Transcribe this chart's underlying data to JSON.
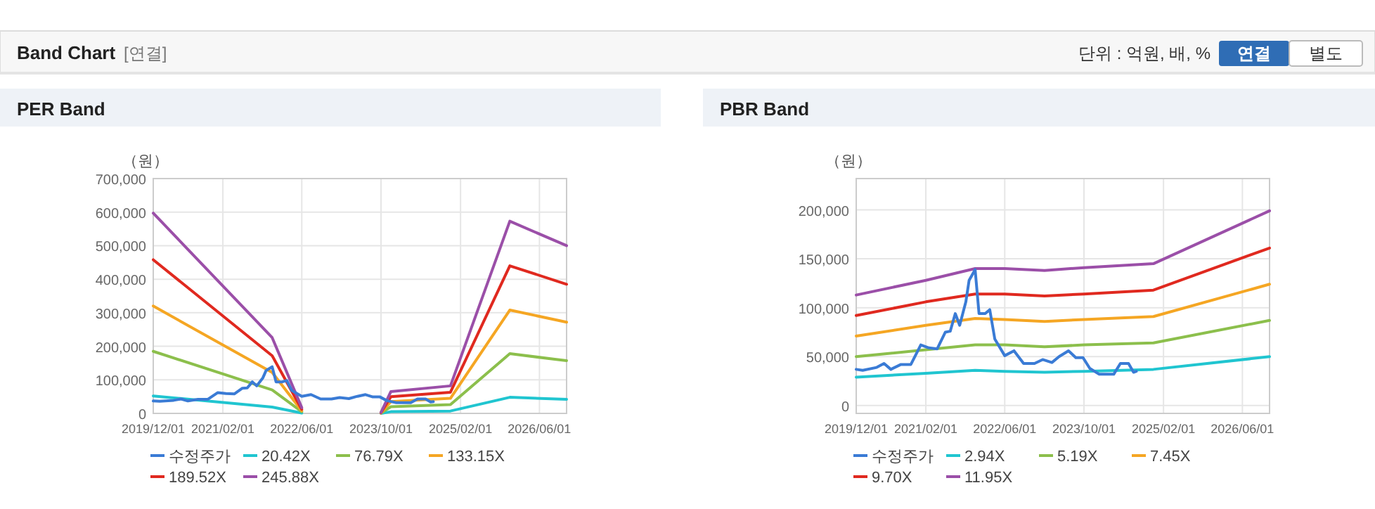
{
  "chart_data": [
    {
      "type": "line",
      "title": "PER Band",
      "ylabel": "（원）",
      "annotations": [
        "Band Chart",
        "[연결]",
        "단위 : 억원, 배, %",
        "연결",
        "별도"
      ],
      "grid": true,
      "legend": "bottom",
      "marker": "none",
      "line_style": "solid",
      "xlim": [
        "2019-12-01",
        "2026-11-15"
      ],
      "xticks": [
        {
          "value": "2019-12-01",
          "label": "2019/12/01"
        },
        {
          "value": "2021-02-01",
          "label": "2021/02/01"
        },
        {
          "value": "2022-06-01",
          "label": "2022/06/01"
        },
        {
          "value": "2023-10-01",
          "label": "2023/10/01"
        },
        {
          "value": "2025-02-01",
          "label": "2025/02/01"
        },
        {
          "value": "2026-06-01",
          "label": "2026/06/01"
        }
      ],
      "ylim": [
        0,
        700000
      ],
      "yticks": [
        {
          "value": 0,
          "label": "0"
        },
        {
          "value": 100000,
          "label": "100,000"
        },
        {
          "value": 200000,
          "label": "200,000"
        },
        {
          "value": 300000,
          "label": "300,000"
        },
        {
          "value": 400000,
          "label": "400,000"
        },
        {
          "value": 500000,
          "label": "500,000"
        },
        {
          "value": 600000,
          "label": "600,000"
        },
        {
          "value": 700000,
          "label": "700,000"
        }
      ],
      "series": [
        {
          "name": "수정주가",
          "color": "#3a7bd5",
          "x": [
            "2019-12-01",
            "2020-01-10",
            "2020-04-05",
            "2020-05-20",
            "2020-07-01",
            "2020-09-01",
            "2020-11-01",
            "2021-01-01",
            "2021-02-20",
            "2021-04-12",
            "2021-06-01",
            "2021-07-01",
            "2021-08-01",
            "2021-08-28",
            "2021-10-05",
            "2021-10-25",
            "2021-12-01",
            "2021-12-25",
            "2022-02-01",
            "2022-03-01",
            "2022-04-01",
            "2022-06-01",
            "2022-07-28",
            "2022-09-25",
            "2022-12-01",
            "2023-01-20",
            "2023-03-18",
            "2023-05-01",
            "2023-06-28",
            "2023-08-12",
            "2023-09-25",
            "2023-11-06",
            "2024-01-03",
            "2024-04-01",
            "2024-05-12",
            "2024-07-01",
            "2024-08-01",
            "2024-08-18"
          ],
          "values": [
            37000,
            36000,
            39000,
            43000,
            37000,
            42000,
            42000,
            62000,
            59000,
            58000,
            75000,
            76000,
            94000,
            82000,
            106000,
            128000,
            139000,
            94000,
            94000,
            98000,
            68000,
            51000,
            56000,
            43000,
            43000,
            47000,
            44000,
            50000,
            56000,
            49000,
            49000,
            38000,
            32000,
            32000,
            43000,
            43000,
            34000,
            35000
          ]
        },
        {
          "name": "20.42X",
          "color": "#20c5d0",
          "x": [
            "2019-12-01",
            "2021-12-01",
            "2022-06-01",
            "2023-02-01",
            "2023-10-01",
            "2023-12-01",
            "2024-12-01",
            "2025-12-01",
            "2026-11-15"
          ],
          "values": [
            52000,
            19000,
            1000,
            null,
            0,
            5000,
            7000,
            48000,
            42000
          ]
        },
        {
          "name": "76.79X",
          "color": "#8cbf4c",
          "x": [
            "2019-12-01",
            "2021-12-01",
            "2022-06-01",
            "2023-02-01",
            "2023-10-01",
            "2023-12-01",
            "2024-12-01",
            "2025-12-01",
            "2026-11-15"
          ],
          "values": [
            185000,
            70000,
            5000,
            null,
            1000,
            20000,
            26000,
            178000,
            157000
          ]
        },
        {
          "name": "133.15X",
          "color": "#f5a623",
          "x": [
            "2019-12-01",
            "2021-12-01",
            "2022-06-01",
            "2023-02-01",
            "2023-10-01",
            "2023-12-01",
            "2024-12-01",
            "2025-12-01",
            "2026-11-15"
          ],
          "values": [
            320000,
            122000,
            8000,
            null,
            1000,
            35000,
            45000,
            308000,
            272000
          ]
        },
        {
          "name": "189.52X",
          "color": "#e0291f",
          "x": [
            "2019-12-01",
            "2021-12-01",
            "2022-06-01",
            "2023-02-01",
            "2023-10-01",
            "2023-12-01",
            "2024-12-01",
            "2025-12-01",
            "2026-11-15"
          ],
          "values": [
            458000,
            172000,
            12000,
            null,
            2000,
            50000,
            63000,
            440000,
            385000
          ]
        },
        {
          "name": "245.88X",
          "color": "#9b4fa8",
          "x": [
            "2019-12-01",
            "2021-12-01",
            "2022-06-01",
            "2023-02-01",
            "2023-10-01",
            "2023-12-01",
            "2024-12-01",
            "2025-12-01",
            "2026-11-15"
          ],
          "values": [
            597000,
            226000,
            17000,
            null,
            3000,
            65000,
            82000,
            573000,
            500000
          ]
        }
      ]
    },
    {
      "type": "line",
      "title": "PBR Band",
      "ylabel": "（원）",
      "grid": true,
      "legend": "bottom",
      "marker": "none",
      "line_style": "solid",
      "xlim": [
        "2019-12-01",
        "2026-11-15"
      ],
      "xticks": [
        {
          "value": "2019-12-01",
          "label": "2019/12/01"
        },
        {
          "value": "2021-02-01",
          "label": "2021/02/01"
        },
        {
          "value": "2022-06-01",
          "label": "2022/06/01"
        },
        {
          "value": "2023-10-01",
          "label": "2023/10/01"
        },
        {
          "value": "2025-02-01",
          "label": "2025/02/01"
        },
        {
          "value": "2026-06-01",
          "label": "2026/06/01"
        }
      ],
      "ylim": [
        -8000,
        232000
      ],
      "yticks": [
        {
          "value": 0,
          "label": "0"
        },
        {
          "value": 50000,
          "label": "50,000"
        },
        {
          "value": 100000,
          "label": "100,000"
        },
        {
          "value": 150000,
          "label": "150,000"
        },
        {
          "value": 200000,
          "label": "200,000"
        }
      ],
      "series": [
        {
          "name": "수정주가",
          "color": "#3a7bd5",
          "x": [
            "2019-12-01",
            "2020-01-10",
            "2020-04-05",
            "2020-05-20",
            "2020-07-01",
            "2020-09-01",
            "2020-11-01",
            "2021-01-01",
            "2021-02-20",
            "2021-04-12",
            "2021-06-01",
            "2021-07-01",
            "2021-08-01",
            "2021-08-28",
            "2021-10-05",
            "2021-10-25",
            "2021-12-01",
            "2021-12-25",
            "2022-02-01",
            "2022-03-01",
            "2022-04-01",
            "2022-06-01",
            "2022-07-28",
            "2022-09-25",
            "2022-12-01",
            "2023-01-20",
            "2023-03-18",
            "2023-05-01",
            "2023-06-28",
            "2023-08-12",
            "2023-09-25",
            "2023-11-06",
            "2024-01-03",
            "2024-04-01",
            "2024-05-12",
            "2024-07-01",
            "2024-08-01",
            "2024-08-18"
          ],
          "values": [
            37000,
            36000,
            39000,
            43000,
            37000,
            42000,
            42000,
            62000,
            59000,
            58000,
            75000,
            76000,
            94000,
            82000,
            106000,
            128000,
            139000,
            94000,
            94000,
            98000,
            68000,
            51000,
            56000,
            43000,
            43000,
            47000,
            44000,
            50000,
            56000,
            49000,
            49000,
            38000,
            32000,
            32000,
            43000,
            43000,
            34000,
            35000
          ]
        },
        {
          "name": "2.94X",
          "color": "#20c5d0",
          "x": [
            "2019-12-01",
            "2021-02-01",
            "2021-12-01",
            "2022-06-01",
            "2023-02-01",
            "2023-10-01",
            "2024-12-01",
            "2026-11-15"
          ],
          "values": [
            29000,
            33000,
            36000,
            35000,
            34000,
            35000,
            37000,
            50000
          ]
        },
        {
          "name": "5.19X",
          "color": "#8cbf4c",
          "x": [
            "2019-12-01",
            "2021-02-01",
            "2021-12-01",
            "2022-06-01",
            "2023-02-01",
            "2023-10-01",
            "2024-12-01",
            "2026-11-15"
          ],
          "values": [
            50000,
            57000,
            62000,
            62000,
            60000,
            62000,
            64000,
            87000
          ]
        },
        {
          "name": "7.45X",
          "color": "#f5a623",
          "x": [
            "2019-12-01",
            "2021-02-01",
            "2021-12-01",
            "2022-06-01",
            "2023-02-01",
            "2023-10-01",
            "2024-12-01",
            "2026-11-15"
          ],
          "values": [
            71000,
            82000,
            89000,
            88000,
            86000,
            88000,
            91000,
            124000
          ]
        },
        {
          "name": "9.70X",
          "color": "#e0291f",
          "x": [
            "2019-12-01",
            "2021-02-01",
            "2021-12-01",
            "2022-06-01",
            "2023-02-01",
            "2023-10-01",
            "2024-12-01",
            "2026-11-15"
          ],
          "values": [
            92000,
            106000,
            114000,
            114000,
            112000,
            114000,
            118000,
            161000
          ]
        },
        {
          "name": "11.95X",
          "color": "#9b4fa8",
          "x": [
            "2019-12-01",
            "2021-02-01",
            "2021-12-01",
            "2022-06-01",
            "2023-02-01",
            "2023-10-01",
            "2024-12-01",
            "2026-11-15"
          ],
          "values": [
            113000,
            128000,
            140000,
            140000,
            138000,
            141000,
            145000,
            199000
          ]
        }
      ]
    }
  ]
}
